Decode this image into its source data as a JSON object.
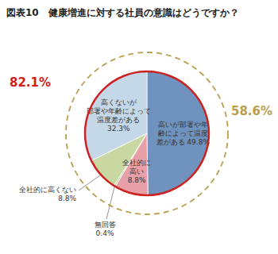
{
  "chart_data": {
    "type": "pie",
    "title": "図表10　健康増進に対する社員の意識はどうですか？",
    "categories": [
      "高いが部署や年\n齢によって温度\n差がある 49.8%",
      "全社的に\n高い\n8.8%",
      "無回答\n0.4%",
      "全社的に高くない\n8.8%",
      "高くないが\n部署や年齢によって\n温度差がある\n32.3%"
    ],
    "values": [
      49.8,
      8.8,
      0.4,
      8.8,
      32.3
    ],
    "colors": [
      "#7092be",
      "#e8a0a8",
      "#b8cc98",
      "#c8d8a0",
      "#c5d8e8"
    ],
    "annotations": [
      {
        "text": "58.6%",
        "color": "#b8a050"
      },
      {
        "text": "82.1%",
        "color": "#cc2222"
      }
    ]
  }
}
